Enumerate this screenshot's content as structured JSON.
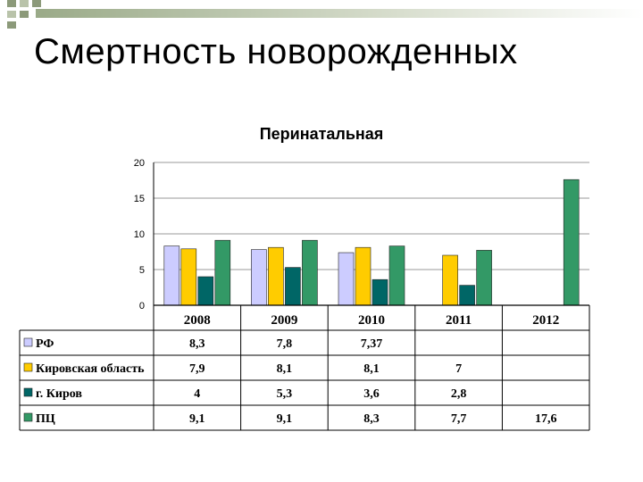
{
  "slide": {
    "title": "Смертность новорожденных"
  },
  "chart_data": {
    "type": "bar",
    "title": "Перинатальная",
    "categories": [
      "2008",
      "2009",
      "2010",
      "2011",
      "2012"
    ],
    "ylim": [
      0,
      20
    ],
    "yticks": [
      0,
      5,
      10,
      15,
      20
    ],
    "grid": true,
    "legend": "data-table-left",
    "series": [
      {
        "name": "РФ",
        "color": "#ccccff",
        "values": [
          8.3,
          7.8,
          7.37,
          null,
          null
        ],
        "labels": [
          "8,3",
          "7,8",
          "7,37",
          "",
          ""
        ]
      },
      {
        "name": "Кировская область",
        "color": "#ffcc00",
        "values": [
          7.9,
          8.1,
          8.1,
          7,
          null
        ],
        "labels": [
          "7,9",
          "8,1",
          "8,1",
          "7",
          ""
        ]
      },
      {
        "name": "г. Киров",
        "color": "#006666",
        "values": [
          4,
          5.3,
          3.6,
          2.8,
          null
        ],
        "labels": [
          "4",
          "5,3",
          "3,6",
          "2,8",
          ""
        ]
      },
      {
        "name": "ПЦ",
        "color": "#339966",
        "values": [
          9.1,
          9.1,
          8.3,
          7.7,
          17.6
        ],
        "labels": [
          "9,1",
          "9,1",
          "8,3",
          "7,7",
          "17,6"
        ]
      }
    ]
  }
}
